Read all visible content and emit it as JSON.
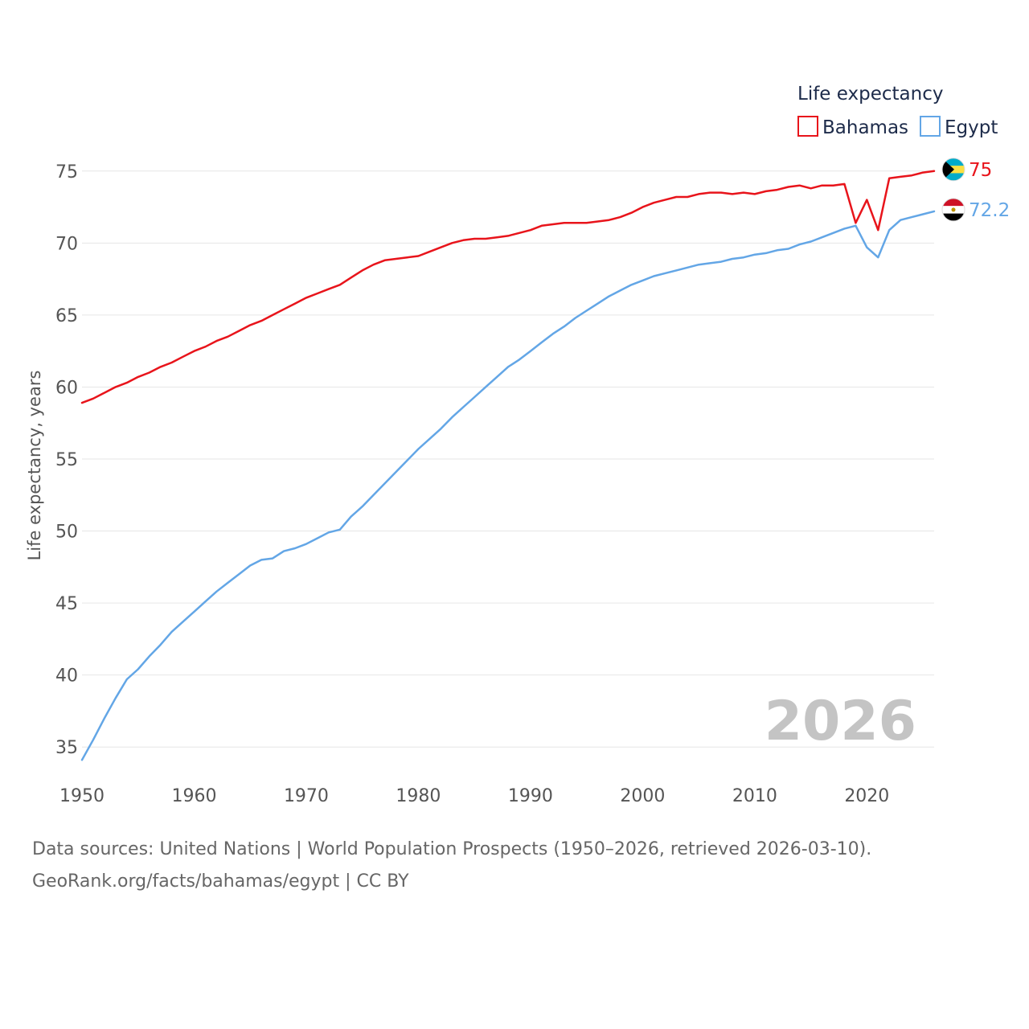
{
  "colors": {
    "bahamas": "#e8141b",
    "egypt": "#63a6e6",
    "grid": "#e6e6e6",
    "watermark": "#c4c4c4"
  },
  "legend": {
    "title": "Life expectancy",
    "items": [
      "Bahamas",
      "Egypt"
    ]
  },
  "current_year": "2026",
  "footer": {
    "line1": "Data sources: United Nations | World Population Prospects (1950–2026, retrieved 2026-03-10).",
    "line2": "GeoRank.org/facts/bahamas/egypt | CC BY"
  },
  "chart_data": {
    "type": "line",
    "title": "Life expectancy",
    "xlabel": "",
    "ylabel": "Life expectancy, years",
    "xlim": [
      1950,
      2026
    ],
    "ylim": [
      32.5,
      77.5
    ],
    "x_ticks": [
      1950,
      1960,
      1970,
      1980,
      1990,
      2000,
      2010,
      2020
    ],
    "y_ticks": [
      35,
      40,
      45,
      50,
      55,
      60,
      65,
      70,
      75
    ],
    "grid": true,
    "legend_position": "top-right",
    "x": [
      1950,
      1951,
      1952,
      1953,
      1954,
      1955,
      1956,
      1957,
      1958,
      1959,
      1960,
      1961,
      1962,
      1963,
      1964,
      1965,
      1966,
      1967,
      1968,
      1969,
      1970,
      1971,
      1972,
      1973,
      1974,
      1975,
      1976,
      1977,
      1978,
      1979,
      1980,
      1981,
      1982,
      1983,
      1984,
      1985,
      1986,
      1987,
      1988,
      1989,
      1990,
      1991,
      1992,
      1993,
      1994,
      1995,
      1996,
      1997,
      1998,
      1999,
      2000,
      2001,
      2002,
      2003,
      2004,
      2005,
      2006,
      2007,
      2008,
      2009,
      2010,
      2011,
      2012,
      2013,
      2014,
      2015,
      2016,
      2017,
      2018,
      2019,
      2020,
      2021,
      2022,
      2023,
      2024,
      2025,
      2026
    ],
    "series": [
      {
        "name": "Bahamas",
        "end_label": "75",
        "flag": "bahamas-flag",
        "values": [
          58.9,
          59.2,
          59.6,
          60.0,
          60.3,
          60.7,
          61.0,
          61.4,
          61.7,
          62.1,
          62.5,
          62.8,
          63.2,
          63.5,
          63.9,
          64.3,
          64.6,
          65.0,
          65.4,
          65.8,
          66.2,
          66.5,
          66.8,
          67.1,
          67.6,
          68.1,
          68.5,
          68.8,
          68.9,
          69.0,
          69.1,
          69.4,
          69.7,
          70.0,
          70.2,
          70.3,
          70.3,
          70.4,
          70.5,
          70.7,
          70.9,
          71.2,
          71.3,
          71.4,
          71.4,
          71.4,
          71.5,
          71.6,
          71.8,
          72.1,
          72.5,
          72.8,
          73.0,
          73.2,
          73.2,
          73.4,
          73.5,
          73.5,
          73.4,
          73.5,
          73.4,
          73.6,
          73.7,
          73.9,
          74.0,
          73.8,
          74.0,
          74.0,
          74.1,
          71.4,
          73.0,
          70.9,
          74.5,
          74.6,
          74.7,
          74.9,
          75.0
        ]
      },
      {
        "name": "Egypt",
        "end_label": "72.2",
        "flag": "egypt-flag",
        "values": [
          34.1,
          35.5,
          37.0,
          38.4,
          39.7,
          40.4,
          41.3,
          42.1,
          43.0,
          43.7,
          44.4,
          45.1,
          45.8,
          46.4,
          47.0,
          47.6,
          48.0,
          48.1,
          48.6,
          48.8,
          49.1,
          49.5,
          49.9,
          50.1,
          51.0,
          51.7,
          52.5,
          53.3,
          54.1,
          54.9,
          55.7,
          56.4,
          57.1,
          57.9,
          58.6,
          59.3,
          60.0,
          60.7,
          61.4,
          61.9,
          62.5,
          63.1,
          63.7,
          64.2,
          64.8,
          65.3,
          65.8,
          66.3,
          66.7,
          67.1,
          67.4,
          67.7,
          67.9,
          68.1,
          68.3,
          68.5,
          68.6,
          68.7,
          68.9,
          69.0,
          69.2,
          69.3,
          69.5,
          69.6,
          69.9,
          70.1,
          70.4,
          70.7,
          71.0,
          71.2,
          69.7,
          69.0,
          70.9,
          71.6,
          71.8,
          72.0,
          72.2
        ]
      }
    ]
  }
}
